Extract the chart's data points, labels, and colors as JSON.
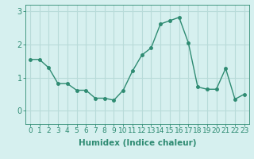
{
  "x": [
    0,
    1,
    2,
    3,
    4,
    5,
    6,
    7,
    8,
    9,
    10,
    11,
    12,
    13,
    14,
    15,
    16,
    17,
    18,
    19,
    20,
    21,
    22,
    23
  ],
  "y": [
    1.55,
    1.55,
    1.3,
    0.82,
    0.82,
    0.62,
    0.62,
    0.38,
    0.38,
    0.32,
    0.62,
    1.2,
    1.68,
    1.9,
    2.62,
    2.72,
    2.82,
    2.05,
    0.72,
    0.65,
    0.65,
    1.28,
    0.35,
    0.5
  ],
  "line_color": "#2e8b72",
  "marker": "o",
  "marker_size": 2.5,
  "bg_color": "#d6f0ef",
  "grid_color": "#b8dbd9",
  "tick_color": "#2e8b72",
  "xlabel": "Humidex (Indice chaleur)",
  "ylabel": "",
  "xlim": [
    -0.5,
    23.5
  ],
  "ylim": [
    -0.4,
    3.2
  ],
  "yticks": [
    0,
    1,
    2,
    3
  ],
  "xticks": [
    0,
    1,
    2,
    3,
    4,
    5,
    6,
    7,
    8,
    9,
    10,
    11,
    12,
    13,
    14,
    15,
    16,
    17,
    18,
    19,
    20,
    21,
    22,
    23
  ],
  "xlabel_fontsize": 7.5,
  "tick_fontsize": 6.5
}
